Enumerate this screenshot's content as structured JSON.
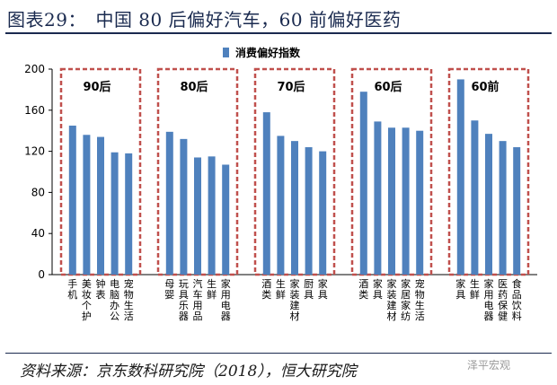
{
  "title": "图表29：　中国 80 后偏好汽车，60 前偏好医药",
  "source": "资料来源：京东数科研究院（2018），恒大研究院",
  "watermark": "泽平宏观",
  "colors": {
    "bar": "#4f81bd",
    "group_box": "#c0504d",
    "axis": "#000000"
  },
  "chart_data": {
    "type": "bar",
    "legend": {
      "label": "消费偏好指数",
      "position": "top-center"
    },
    "ylim": [
      0,
      200
    ],
    "yticks": [
      0,
      40,
      80,
      120,
      160,
      200
    ],
    "groups": [
      {
        "name": "90后",
        "categories": [
          "手机",
          "美妆个护",
          "钟表",
          "电脑办公",
          "宠物生活"
        ],
        "values": [
          145,
          136,
          134,
          119,
          118
        ]
      },
      {
        "name": "80后",
        "categories": [
          "母婴",
          "玩具乐器",
          "汽车用品",
          "生鲜",
          "家用电器"
        ],
        "values": [
          139,
          132,
          114,
          115,
          107
        ]
      },
      {
        "name": "70后",
        "categories": [
          "酒类",
          "生鲜",
          "家装建材",
          "厨具",
          "家具"
        ],
        "values": [
          158,
          135,
          130,
          124,
          120
        ]
      },
      {
        "name": "60后",
        "categories": [
          "酒类",
          "家具",
          "家装建材",
          "家居家纺",
          "宠物生活"
        ],
        "values": [
          178,
          149,
          143,
          143,
          140
        ]
      },
      {
        "name": "60前",
        "categories": [
          "家具",
          "生鲜",
          "家用电器",
          "医药保健",
          "食品饮料"
        ],
        "values": [
          190,
          150,
          137,
          130,
          124
        ]
      }
    ]
  }
}
